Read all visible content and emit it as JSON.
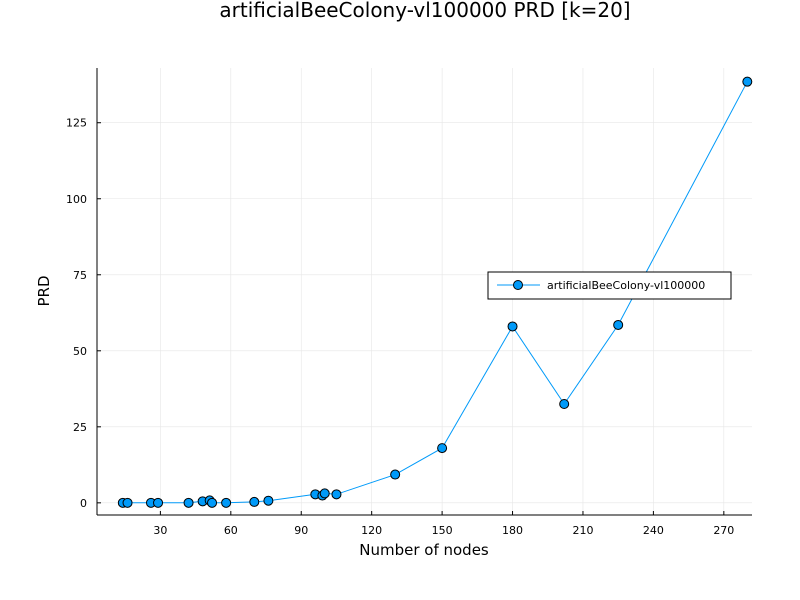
{
  "chart_data": {
    "type": "scatter",
    "title": "artificialBeeColony-vl100000 PRD [k=20]",
    "xlabel": "Number of nodes",
    "ylabel": "PRD",
    "xlim": [
      3,
      282
    ],
    "ylim": [
      -4,
      143
    ],
    "xticks": [
      30,
      60,
      90,
      120,
      150,
      180,
      210,
      240,
      270
    ],
    "yticks": [
      0,
      25,
      50,
      75,
      100,
      125
    ],
    "grid": true,
    "legend_position": "right",
    "series": [
      {
        "name": "artificialBeeColony-vl100000",
        "color": "#009af9",
        "marker": "circle",
        "line": true,
        "x": [
          14,
          16,
          26,
          29,
          42,
          48,
          51,
          52,
          58,
          70,
          76,
          96,
          99,
          100,
          105,
          130,
          150,
          180,
          202,
          225,
          280
        ],
        "y": [
          0,
          0,
          0,
          0,
          0,
          0.5,
          0.8,
          0,
          0,
          0.3,
          0.7,
          2.8,
          2.4,
          3.1,
          2.8,
          9.3,
          18,
          58,
          32.5,
          58.5,
          138.5
        ]
      }
    ]
  }
}
